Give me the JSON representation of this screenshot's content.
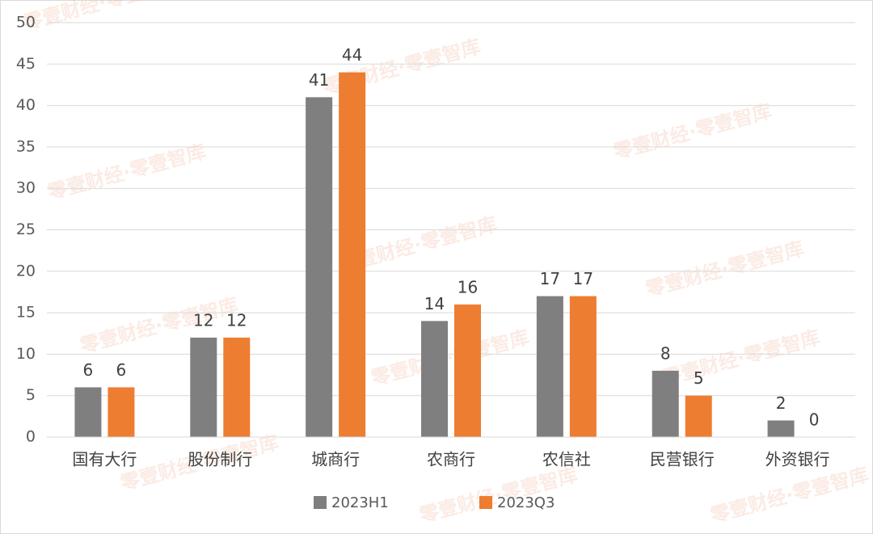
{
  "chart_data": {
    "type": "bar",
    "watermark": "零壹财经·零壹智库",
    "categories": [
      "国有大行",
      "股份制行",
      "城商行",
      "农商行",
      "农信社",
      "民营银行",
      "外资银行"
    ],
    "series": [
      {
        "name": "2023H1",
        "color": "#7f7f7f",
        "values": [
          6,
          12,
          41,
          14,
          17,
          8,
          2
        ]
      },
      {
        "name": "2023Q3",
        "color": "#ed7d31",
        "values": [
          6,
          12,
          44,
          16,
          17,
          5,
          0
        ]
      }
    ],
    "ylim": [
      0,
      50
    ],
    "yticks": [
      0,
      5,
      10,
      15,
      20,
      25,
      30,
      35,
      40,
      45,
      50
    ],
    "grid": true
  }
}
